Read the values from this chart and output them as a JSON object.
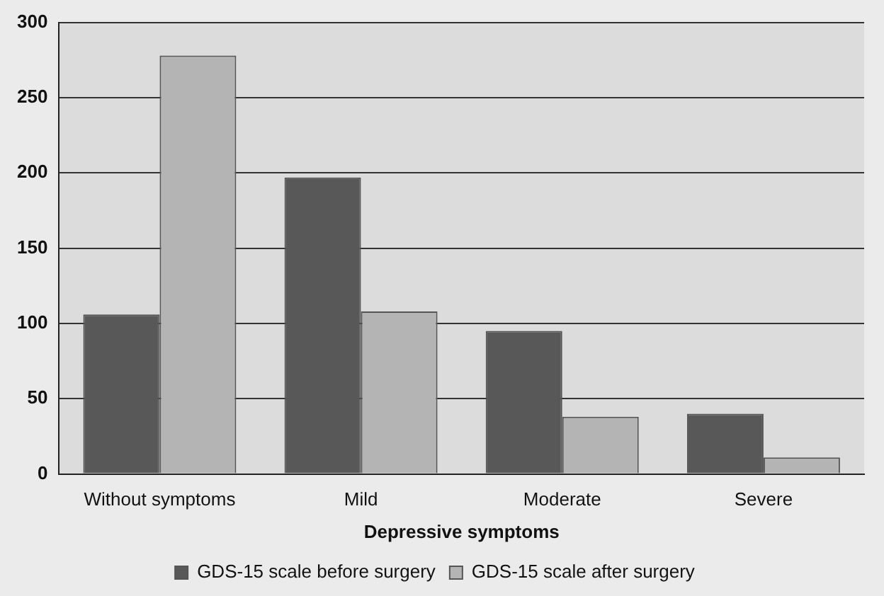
{
  "chart_data": {
    "type": "bar",
    "xlabel": "Depressive symptoms",
    "categories": [
      "Without symptoms",
      "Mild",
      "Moderate",
      "Severe"
    ],
    "series": [
      {
        "name": "GDS-15 scale before surgery",
        "color": "#585858",
        "values": [
          106,
          197,
          95,
          40
        ]
      },
      {
        "name": "GDS-15 scale after surgery",
        "color": "#b4b4b4",
        "values": [
          278,
          108,
          38,
          11
        ]
      }
    ],
    "ylim": [
      0,
      300
    ],
    "yticks": [
      0,
      50,
      100,
      150,
      200,
      250,
      300
    ],
    "grid": "y",
    "legend": "bottom"
  }
}
